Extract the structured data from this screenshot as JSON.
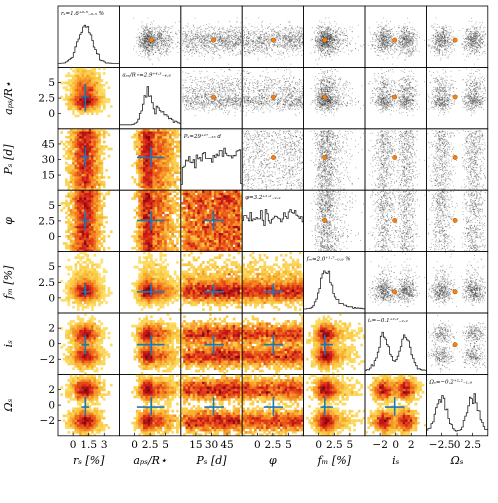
{
  "chart_data": {
    "type": "corner",
    "parameters": [
      {
        "key": "rs",
        "label": "rₛ [%]",
        "ticks": [
          "0",
          "1.5",
          "3"
        ],
        "range": [
          0,
          3.6
        ],
        "median": 1.6,
        "err_plus": 0.5,
        "err_minus": 0.5,
        "summary": "rₛ=1.6⁺⁰·⁵₋₀.₅ %"
      },
      {
        "key": "aps",
        "label": "aₚₛ/R⋆",
        "ticks": [
          "0",
          "2.5",
          "5"
        ],
        "range": [
          0,
          5.6
        ],
        "median": 2.9,
        "err_plus": 4.3,
        "err_minus": 4.8,
        "summary": "aₚₛ/R⋆=2.9⁺⁴·³₋₄.₈"
      },
      {
        "key": "Ps",
        "label": "Pₛ [d]",
        "ticks": [
          "15",
          "30",
          "45"
        ],
        "range": [
          5,
          50
        ],
        "median": 29,
        "err_plus": 17,
        "err_minus": 15,
        "summary": "Pₛ=29⁺¹⁷₋₁₅ d"
      },
      {
        "key": "phi",
        "label": "φ",
        "ticks": [
          "0",
          "2.5",
          "5"
        ],
        "range": [
          0,
          6.3
        ],
        "median": 3.2,
        "err_plus": 2.2,
        "err_minus": 2.2,
        "summary": "φ=3.2⁺²·²₋₂.₂"
      },
      {
        "key": "fM",
        "label": "fₘ [%]",
        "ticks": [
          "0",
          "2.5",
          "5"
        ],
        "range": [
          0,
          5.8
        ],
        "median": 2.0,
        "err_plus": 1.7,
        "err_minus": 0.9,
        "summary": "fₘ=2.0⁺¹·⁷₋₀.₉ %"
      },
      {
        "key": "is",
        "label": "iₛ",
        "ticks": [
          "−2",
          "0",
          "2"
        ],
        "range": [
          -3.1,
          3.1
        ],
        "median": -0.1,
        "err_plus": 2.2,
        "err_minus": 2.2,
        "summary": "iₛ=−0.1⁺²·²₋₂.₂"
      },
      {
        "key": "Os",
        "label": "Ωₛ",
        "ticks": [
          "−2.5",
          "0",
          "2.5"
        ],
        "range": [
          -3.1,
          3.1
        ],
        "median": -0.2,
        "err_plus": 2.2,
        "err_minus": 1.9,
        "summary": "Ωₛ=−0.2⁺²·²₋₁.₉"
      }
    ],
    "row_ticks": {
      "aps": [
        "0",
        "2.5",
        "5"
      ],
      "Ps": [
        "15",
        "30",
        "45"
      ],
      "phi": [
        "0",
        "2.5",
        "5"
      ],
      "fM": [
        "0",
        "2.5",
        "5"
      ],
      "is": [
        "−2",
        "0",
        "2"
      ],
      "Os": [
        "−2",
        "0",
        "2"
      ]
    },
    "grid": false,
    "colors": {
      "heat_low": "#ffee88",
      "heat_mid": "#f5a21a",
      "heat_high": "#cc1a1a",
      "cross": "#1f77b4",
      "star": "#ff7f0e",
      "scatter": "#3a3a3a",
      "hist": "#222222"
    }
  }
}
